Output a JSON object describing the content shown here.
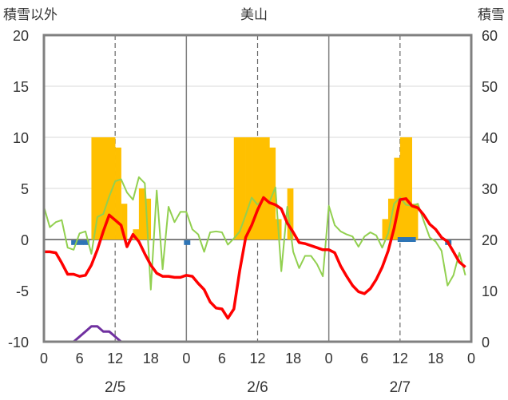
{
  "chart_data": {
    "type": "bar+line",
    "title": "美山",
    "y_left_label": "積雪以外",
    "y_right_label": "積雪",
    "y_left_range": [
      -10,
      20
    ],
    "y_right_range": [
      0,
      60
    ],
    "y_left_ticks": [
      "20",
      "15",
      "10",
      "5",
      "0",
      "-5",
      "-10"
    ],
    "y_right_ticks": [
      "60",
      "50",
      "40",
      "30",
      "20",
      "10",
      "0"
    ],
    "x_range_hours": [
      0,
      72
    ],
    "x_tick_labels": [
      "0",
      "6",
      "12",
      "18",
      "0",
      "6",
      "12",
      "18",
      "0",
      "6",
      "12",
      "18",
      "0"
    ],
    "date_labels": [
      "2/5",
      "2/6",
      "2/7"
    ],
    "colors": {
      "temperature": "#ff0000",
      "wind_line": "#92d050",
      "snow_bars": "#ffc000",
      "precip_marks": "#2e75b6",
      "snow_depth": "#7030a0",
      "axis": "#808080",
      "grid_dash": "#666666"
    },
    "snow_bars": {
      "hours": [
        8,
        9,
        10,
        11,
        12,
        13,
        15,
        16,
        17,
        32,
        33,
        34,
        35,
        36,
        37,
        38,
        39,
        41,
        57,
        58,
        59,
        60,
        61,
        62
      ],
      "values": [
        10,
        10,
        10,
        10,
        9,
        3.5,
        1,
        5,
        4,
        10,
        10,
        10,
        10,
        10,
        10,
        9,
        2,
        5,
        2,
        4,
        8,
        10,
        10,
        3.5
      ]
    },
    "precip_marks": {
      "hours": [
        5,
        6,
        7,
        24,
        60,
        61,
        62,
        68
      ],
      "values": [
        -0.3,
        -0.3,
        -0.3,
        -0.3,
        0,
        0,
        0,
        -0.3
      ]
    },
    "temperature": {
      "hours": [
        0,
        1,
        2,
        3,
        4,
        5,
        6,
        7,
        8,
        9,
        10,
        11,
        12,
        13,
        14,
        15,
        16,
        17,
        18,
        19,
        20,
        21,
        22,
        23,
        24,
        25,
        26,
        27,
        28,
        29,
        30,
        31,
        32,
        33,
        34,
        35,
        36,
        37,
        38,
        39,
        40,
        41,
        42,
        43,
        44,
        45,
        46,
        47,
        48,
        49,
        50,
        51,
        52,
        53,
        54,
        55,
        56,
        57,
        58,
        59,
        60,
        61,
        62,
        63,
        64,
        65,
        66,
        67,
        68,
        69,
        70,
        71
      ],
      "values": [
        -1.2,
        -1.2,
        -1.3,
        -2.3,
        -3.4,
        -3.4,
        -3.6,
        -3.5,
        -2.5,
        -1.0,
        0.8,
        2.4,
        1.9,
        1.4,
        -0.7,
        0.5,
        -0.2,
        -1.4,
        -2.5,
        -3.3,
        -3.6,
        -3.6,
        -3.7,
        -3.7,
        -3.5,
        -3.6,
        -4.3,
        -4.9,
        -6.1,
        -6.7,
        -6.8,
        -7.7,
        -6.8,
        -3.0,
        0.2,
        1.4,
        2.9,
        4.1,
        3.6,
        3.4,
        3.0,
        1.6,
        0.7,
        -0.3,
        -0.4,
        -0.6,
        -0.8,
        -1.0,
        -1.0,
        -1.3,
        -2.6,
        -3.6,
        -4.5,
        -5.1,
        -5.3,
        -4.8,
        -3.9,
        -2.7,
        -1.1,
        1.1,
        3.9,
        4.0,
        3.3,
        3.1,
        2.4,
        1.5,
        1.0,
        0.2,
        -0.2,
        -1.2,
        -2.2,
        -2.7
      ]
    },
    "wind": {
      "hours": [
        0,
        1,
        2,
        3,
        4,
        5,
        6,
        7,
        8,
        9,
        10,
        11,
        12,
        13,
        14,
        15,
        16,
        17,
        18,
        19,
        20,
        21,
        22,
        23,
        24,
        25,
        26,
        27,
        28,
        29,
        30,
        31,
        32,
        33,
        34,
        35,
        36,
        37,
        38,
        39,
        40,
        41,
        42,
        43,
        44,
        45,
        46,
        47,
        48,
        49,
        50,
        51,
        52,
        53,
        54,
        55,
        56,
        57,
        58,
        59,
        60,
        61,
        62,
        63,
        64,
        65,
        66,
        67,
        68,
        69,
        70,
        71
      ],
      "values": [
        3.2,
        1.2,
        1.7,
        1.9,
        -0.8,
        -1.0,
        0.6,
        0.8,
        -1.4,
        2.2,
        2.5,
        4.2,
        5.7,
        5.9,
        4.6,
        3.9,
        6.1,
        5.5,
        -4.9,
        4.8,
        -2.9,
        3.2,
        1.7,
        2.7,
        2.7,
        1.0,
        0.5,
        -1.2,
        0.7,
        0.8,
        0.7,
        -0.5,
        0.1,
        0.8,
        2.4,
        4.1,
        3.4,
        4.0,
        3.7,
        5.1,
        -3.1,
        3.2,
        -1.2,
        -2.8,
        -1.6,
        -1.6,
        -2.4,
        -3.6,
        3.3,
        1.4,
        0.8,
        0.5,
        0.3,
        -0.7,
        0.3,
        0.7,
        0.4,
        -0.8,
        0.6,
        3.5,
        4.1,
        3.4,
        3.3,
        3.5,
        1.8,
        0.2,
        -0.2,
        -1.1,
        -4.5,
        -3.5,
        -1.3,
        -3.5
      ]
    },
    "snow_depth": {
      "hours": [
        0,
        1,
        2,
        3,
        4,
        5,
        6,
        7,
        8,
        9,
        10,
        11,
        12,
        13,
        14,
        15,
        16,
        17,
        18,
        19,
        20,
        21,
        22,
        23,
        24,
        36,
        48,
        60,
        72
      ],
      "values": [
        0,
        0,
        0,
        0,
        0,
        0,
        1,
        2,
        3,
        3,
        2,
        2,
        1,
        0,
        0,
        0,
        0,
        0,
        0,
        0,
        0,
        0,
        0,
        0,
        0,
        0,
        0,
        0,
        0
      ]
    }
  }
}
